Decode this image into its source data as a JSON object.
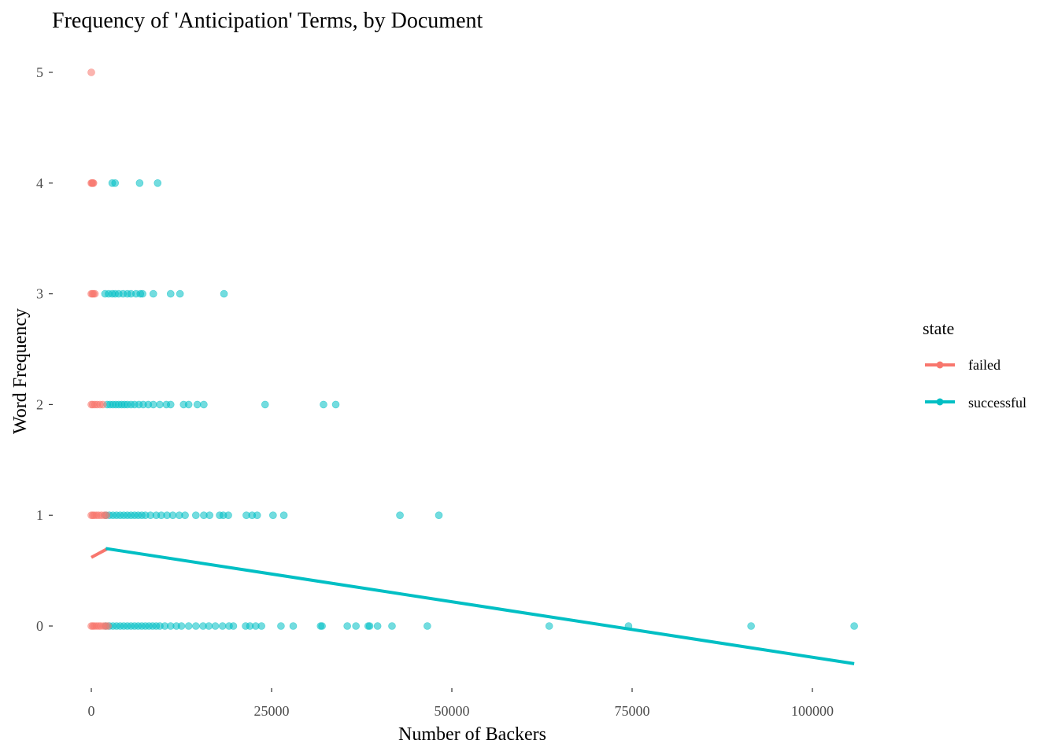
{
  "chart_data": {
    "type": "scatter",
    "title": "Frequency of 'Anticipation' Terms, by Document",
    "xlabel": "Number of Backers",
    "ylabel": "Word Frequency",
    "xlim": [
      -2500,
      110000
    ],
    "ylim": [
      -0.6,
      5.25
    ],
    "x_ticks": [
      0,
      25000,
      50000,
      75000,
      100000
    ],
    "x_tick_labels": [
      "0",
      "25000",
      "50000",
      "75000",
      "100000"
    ],
    "y_ticks": [
      0,
      1,
      2,
      3,
      4,
      5
    ],
    "y_tick_labels": [
      "0",
      "1",
      "2",
      "3",
      "4",
      "5"
    ],
    "grid": false,
    "legend": {
      "title": "state",
      "placement": "right",
      "entries": [
        {
          "label": "failed",
          "color": "#F8766D"
        },
        {
          "label": "successful",
          "color": "#00BFC4"
        }
      ]
    },
    "series": [
      {
        "name": "failed",
        "color": "#F8766D",
        "points": [
          [
            0,
            5
          ],
          [
            0,
            4
          ],
          [
            100,
            4
          ],
          [
            200,
            4
          ],
          [
            300,
            4
          ],
          [
            0,
            3
          ],
          [
            150,
            3
          ],
          [
            300,
            3
          ],
          [
            500,
            3
          ],
          [
            0,
            2
          ],
          [
            200,
            2
          ],
          [
            500,
            2
          ],
          [
            800,
            2
          ],
          [
            1200,
            2
          ],
          [
            1600,
            2
          ],
          [
            0,
            1
          ],
          [
            200,
            1
          ],
          [
            400,
            1
          ],
          [
            700,
            1
          ],
          [
            1000,
            1
          ],
          [
            1400,
            1
          ],
          [
            1800,
            1
          ],
          [
            2100,
            1
          ],
          [
            0,
            0
          ],
          [
            200,
            0
          ],
          [
            400,
            0
          ],
          [
            700,
            0
          ],
          [
            1000,
            0
          ],
          [
            1300,
            0
          ],
          [
            1700,
            0
          ],
          [
            2000,
            0
          ],
          [
            2300,
            0
          ]
        ],
        "trend": [
          [
            0,
            0.62
          ],
          [
            2300,
            0.7
          ]
        ]
      },
      {
        "name": "successful",
        "color": "#00BFC4",
        "points": [
          [
            2900,
            4
          ],
          [
            3300,
            4
          ],
          [
            6700,
            4
          ],
          [
            9200,
            4
          ],
          [
            1900,
            3
          ],
          [
            2400,
            3
          ],
          [
            2900,
            3
          ],
          [
            3300,
            3
          ],
          [
            3800,
            3
          ],
          [
            4400,
            3
          ],
          [
            5000,
            3
          ],
          [
            5500,
            3
          ],
          [
            6200,
            3
          ],
          [
            6800,
            3
          ],
          [
            7100,
            3
          ],
          [
            8600,
            3
          ],
          [
            11000,
            3
          ],
          [
            12300,
            3
          ],
          [
            18400,
            3
          ],
          [
            2200,
            2
          ],
          [
            2600,
            2
          ],
          [
            3000,
            2
          ],
          [
            3400,
            2
          ],
          [
            3800,
            2
          ],
          [
            4200,
            2
          ],
          [
            4600,
            2
          ],
          [
            5000,
            2
          ],
          [
            5500,
            2
          ],
          [
            6000,
            2
          ],
          [
            6600,
            2
          ],
          [
            7200,
            2
          ],
          [
            7900,
            2
          ],
          [
            8600,
            2
          ],
          [
            9500,
            2
          ],
          [
            10400,
            2
          ],
          [
            11000,
            2
          ],
          [
            12800,
            2
          ],
          [
            13500,
            2
          ],
          [
            14700,
            2
          ],
          [
            15600,
            2
          ],
          [
            24100,
            2
          ],
          [
            32200,
            2
          ],
          [
            33900,
            2
          ],
          [
            2000,
            1
          ],
          [
            2500,
            1
          ],
          [
            3000,
            1
          ],
          [
            3500,
            1
          ],
          [
            4000,
            1
          ],
          [
            4500,
            1
          ],
          [
            5000,
            1
          ],
          [
            5500,
            1
          ],
          [
            6000,
            1
          ],
          [
            6500,
            1
          ],
          [
            7000,
            1
          ],
          [
            7500,
            1
          ],
          [
            8200,
            1
          ],
          [
            9000,
            1
          ],
          [
            9700,
            1
          ],
          [
            10500,
            1
          ],
          [
            11300,
            1
          ],
          [
            12200,
            1
          ],
          [
            13000,
            1
          ],
          [
            14500,
            1
          ],
          [
            15600,
            1
          ],
          [
            16400,
            1
          ],
          [
            17800,
            1
          ],
          [
            18300,
            1
          ],
          [
            19000,
            1
          ],
          [
            21500,
            1
          ],
          [
            22300,
            1
          ],
          [
            23000,
            1
          ],
          [
            25200,
            1
          ],
          [
            26700,
            1
          ],
          [
            42800,
            1
          ],
          [
            48200,
            1
          ],
          [
            2000,
            0
          ],
          [
            2500,
            0
          ],
          [
            3000,
            0
          ],
          [
            3500,
            0
          ],
          [
            4000,
            0
          ],
          [
            4500,
            0
          ],
          [
            5000,
            0
          ],
          [
            5500,
            0
          ],
          [
            6000,
            0
          ],
          [
            6500,
            0
          ],
          [
            7000,
            0
          ],
          [
            7500,
            0
          ],
          [
            8000,
            0
          ],
          [
            8500,
            0
          ],
          [
            9000,
            0
          ],
          [
            9500,
            0
          ],
          [
            10200,
            0
          ],
          [
            11000,
            0
          ],
          [
            11800,
            0
          ],
          [
            12500,
            0
          ],
          [
            13500,
            0
          ],
          [
            14500,
            0
          ],
          [
            15500,
            0
          ],
          [
            16300,
            0
          ],
          [
            17200,
            0
          ],
          [
            18200,
            0
          ],
          [
            19100,
            0
          ],
          [
            19700,
            0
          ],
          [
            21400,
            0
          ],
          [
            22000,
            0
          ],
          [
            22800,
            0
          ],
          [
            23600,
            0
          ],
          [
            26300,
            0
          ],
          [
            28000,
            0
          ],
          [
            31800,
            0
          ],
          [
            32000,
            0
          ],
          [
            35500,
            0
          ],
          [
            36700,
            0
          ],
          [
            38400,
            0
          ],
          [
            38600,
            0
          ],
          [
            39700,
            0
          ],
          [
            41700,
            0
          ],
          [
            46600,
            0
          ],
          [
            63500,
            0
          ],
          [
            74500,
            0
          ],
          [
            91500,
            0
          ],
          [
            105800,
            0
          ]
        ],
        "trend": [
          [
            2000,
            0.7
          ],
          [
            105800,
            -0.34
          ]
        ]
      }
    ]
  }
}
